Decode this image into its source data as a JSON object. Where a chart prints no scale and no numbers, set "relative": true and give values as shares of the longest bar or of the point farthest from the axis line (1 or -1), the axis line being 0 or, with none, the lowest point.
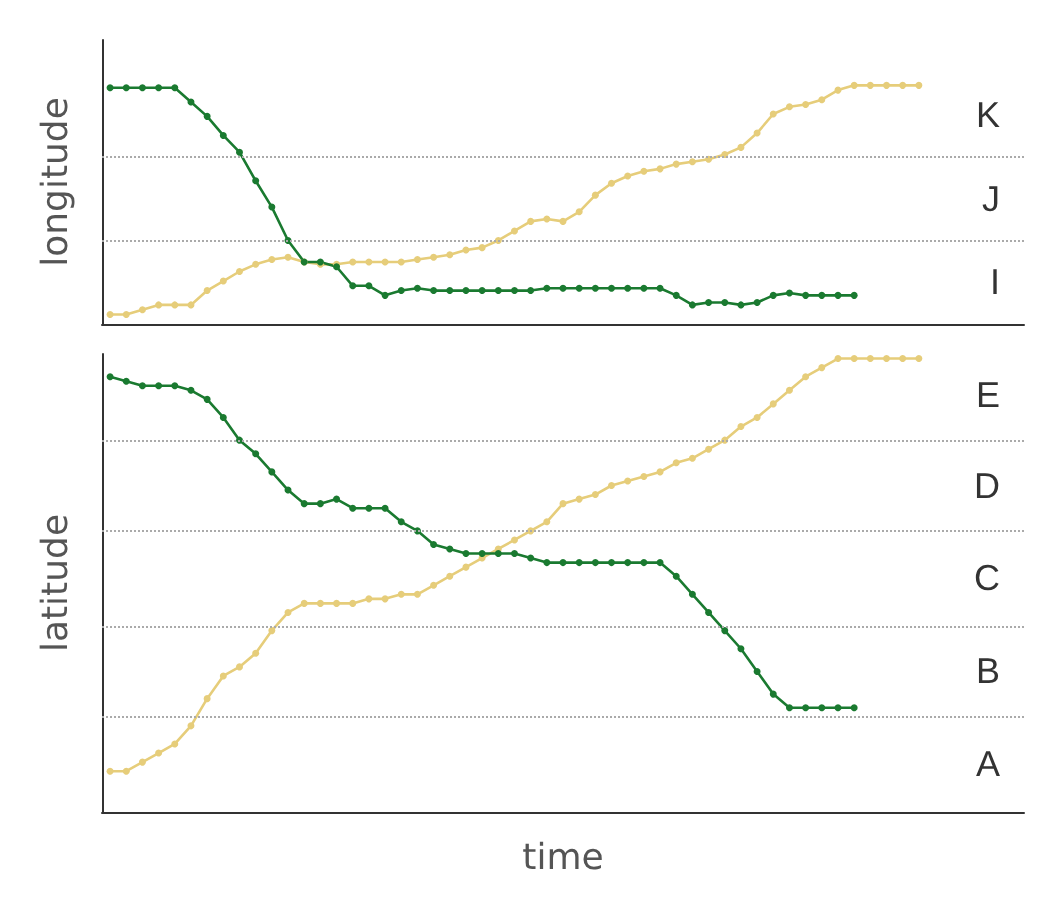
{
  "chart_data": [
    {
      "type": "line",
      "relative": true,
      "ylabel": "longitude",
      "categories": [
        null,
        null,
        null,
        null,
        null,
        null,
        null,
        null,
        null,
        null,
        null,
        null,
        null,
        null,
        null,
        null,
        null,
        null,
        null,
        null,
        null,
        null,
        null,
        null,
        null,
        null,
        null,
        null,
        null,
        null,
        null,
        null,
        null,
        null,
        null,
        null,
        null,
        null,
        null,
        null,
        null,
        null,
        null,
        null,
        null,
        null,
        null,
        null,
        null,
        null,
        null,
        null,
        null,
        null,
        null,
        null,
        null
      ],
      "series": [
        {
          "color": "#e6cd7a",
          "values": [
            0.04,
            0.04,
            0.06,
            0.08,
            0.08,
            0.08,
            0.14,
            0.18,
            0.22,
            0.25,
            0.27,
            0.28,
            0.26,
            0.25,
            0.25,
            0.26,
            0.26,
            0.26,
            0.26,
            0.27,
            0.28,
            0.29,
            0.31,
            0.32,
            0.35,
            0.39,
            0.43,
            0.44,
            0.43,
            0.47,
            0.54,
            0.59,
            0.62,
            0.64,
            0.65,
            0.67,
            0.68,
            0.69,
            0.71,
            0.74,
            0.8,
            0.88,
            0.91,
            0.92,
            0.94,
            0.98,
            1,
            1,
            1,
            1,
            1,
            null,
            null,
            null,
            null,
            null,
            null
          ]
        },
        {
          "color": "#1a7a30",
          "values": [
            0.99,
            0.99,
            0.99,
            0.99,
            0.99,
            0.93,
            0.87,
            0.79,
            0.72,
            0.6,
            0.49,
            0.35,
            0.26,
            0.26,
            0.24,
            0.16,
            0.16,
            0.12,
            0.14,
            0.15,
            0.14,
            0.14,
            0.14,
            0.14,
            0.14,
            0.14,
            0.14,
            0.15,
            0.15,
            0.15,
            0.15,
            0.15,
            0.15,
            0.15,
            0.15,
            0.12,
            0.08,
            0.09,
            0.09,
            0.08,
            0.09,
            0.12,
            0.13,
            0.12,
            0.12,
            0.12,
            0.12,
            null,
            null,
            null,
            null,
            null,
            null,
            null,
            null,
            null,
            null
          ]
        }
      ],
      "ylim": [
        0,
        1.19
      ],
      "annotations": [
        "K",
        "J",
        "I"
      ],
      "ref_lines": [
        {
          "axis": "y",
          "value": 0.35,
          "line_style": "dotted"
        },
        {
          "axis": "y",
          "value": 0.7,
          "line_style": "dotted"
        }
      ],
      "marker": "circle"
    },
    {
      "type": "line",
      "relative": true,
      "xlabel": "time",
      "ylabel": "latitude",
      "categories": [
        null,
        null,
        null,
        null,
        null,
        null,
        null,
        null,
        null,
        null,
        null,
        null,
        null,
        null,
        null,
        null,
        null,
        null,
        null,
        null,
        null,
        null,
        null,
        null,
        null,
        null,
        null,
        null,
        null,
        null,
        null,
        null,
        null,
        null,
        null,
        null,
        null,
        null,
        null,
        null,
        null,
        null,
        null,
        null,
        null,
        null,
        null,
        null,
        null,
        null,
        null,
        null,
        null,
        null,
        null,
        null,
        null
      ],
      "series": [
        {
          "color": "#e6cd7a",
          "values": [
            0.09,
            0.09,
            0.11,
            0.13,
            0.15,
            0.19,
            0.25,
            0.3,
            0.32,
            0.35,
            0.4,
            0.44,
            0.46,
            0.46,
            0.46,
            0.46,
            0.47,
            0.47,
            0.48,
            0.48,
            0.5,
            0.52,
            0.54,
            0.56,
            0.58,
            0.6,
            0.62,
            0.64,
            0.68,
            0.69,
            0.7,
            0.72,
            0.73,
            0.74,
            0.75,
            0.77,
            0.78,
            0.8,
            0.82,
            0.85,
            0.87,
            0.9,
            0.93,
            0.96,
            0.98,
            1.0,
            1,
            1,
            1,
            1,
            1,
            null,
            null,
            null,
            null,
            null,
            null
          ]
        },
        {
          "color": "#1a7a30",
          "values": [
            0.96,
            0.95,
            0.94,
            0.94,
            0.94,
            0.93,
            0.91,
            0.87,
            0.82,
            0.79,
            0.75,
            0.71,
            0.68,
            0.68,
            0.69,
            0.67,
            0.67,
            0.67,
            0.64,
            0.62,
            0.59,
            0.58,
            0.57,
            0.57,
            0.57,
            0.57,
            0.56,
            0.55,
            0.55,
            0.55,
            0.55,
            0.55,
            0.55,
            0.55,
            0.55,
            0.52,
            0.48,
            0.44,
            0.4,
            0.36,
            0.31,
            0.26,
            0.23,
            0.23,
            0.23,
            0.23,
            0.23,
            null,
            null,
            null,
            null,
            null,
            null,
            null,
            null,
            null,
            null
          ]
        }
      ],
      "ylim": [
        0,
        1.01
      ],
      "annotations": [
        "E",
        "D",
        "C",
        "B",
        "A"
      ],
      "ref_lines": [
        {
          "axis": "y",
          "value": 0.21,
          "line_style": "dotted"
        },
        {
          "axis": "y",
          "value": 0.41,
          "line_style": "dotted"
        },
        {
          "axis": "y",
          "value": 0.62,
          "line_style": "dotted"
        },
        {
          "axis": "y",
          "value": 0.82,
          "line_style": "dotted"
        }
      ],
      "marker": "circle"
    }
  ]
}
